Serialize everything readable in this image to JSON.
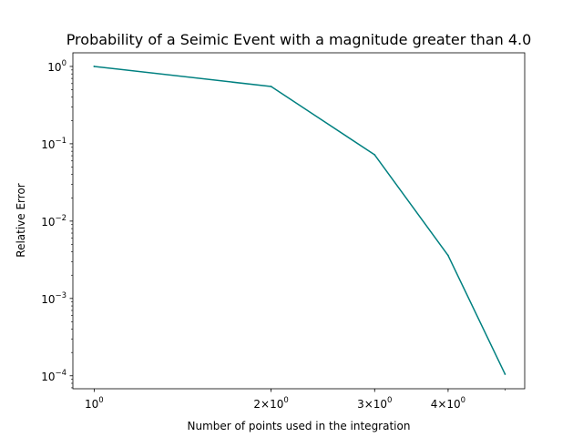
{
  "chart_data": {
    "type": "line",
    "title": "Probability of a Seimic Event with a magnitude greater than 4.0",
    "xlabel": "Number of points used in the integration",
    "ylabel": "Relative Error",
    "xscale": "log",
    "yscale": "log",
    "xlim": [
      0.92,
      5.4
    ],
    "ylim": [
      6.8e-05,
      1.5
    ],
    "x": [
      1,
      2,
      3,
      4,
      5
    ],
    "series": [
      {
        "values": [
          1.0,
          0.55,
          0.072,
          0.0036,
          0.000105
        ],
        "color": "#008080"
      }
    ],
    "x_ticks": [
      {
        "value": 1,
        "mantissa": "",
        "sup": "0"
      },
      {
        "value": 2,
        "mantissa": "2×10",
        "sup": "0"
      },
      {
        "value": 3,
        "mantissa": "3×10",
        "sup": "0"
      },
      {
        "value": 4,
        "mantissa": "4×10",
        "sup": "0"
      }
    ],
    "y_ticks": [
      {
        "value": 1,
        "sup": "0"
      },
      {
        "value": 0.1,
        "sup": "−1"
      },
      {
        "value": 0.01,
        "sup": "−2"
      },
      {
        "value": 0.001,
        "sup": "−3"
      },
      {
        "value": 0.0001,
        "sup": "−4"
      }
    ],
    "tick_base": "10",
    "grid": false,
    "legend": "none"
  }
}
